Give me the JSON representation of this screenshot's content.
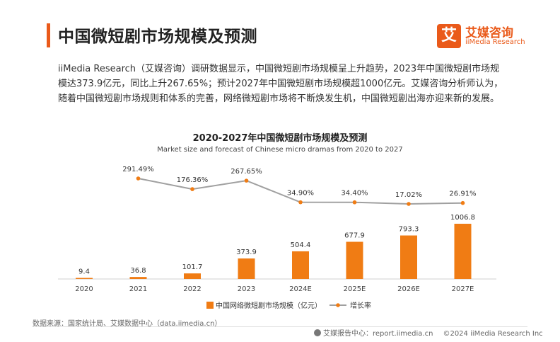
{
  "header": {
    "title": "中国微短剧市场规模及预测",
    "logo_mark": "艾",
    "logo_cn": "艾媒咨询",
    "logo_en": "iiMedia Research"
  },
  "paragraph": "iiMedia Research（艾媒咨询）调研数据显示，中国微短剧市场规模呈上升趋势，2023年中国微短剧市场规模达373.9亿元，同比上升267.65%；预计2027年中国微短剧市场规模超1000亿元。艾媒咨询分析师认为，随着中国微短剧市场规则和体系的完善，网络微短剧市场将不断焕发生机，中国微短剧出海亦迎来新的发展。",
  "chart_data": {
    "type": "bar",
    "title": "2020-2027年中国微短剧市场规模及预测",
    "subtitle": "Market size and forecast of Chinese micro dramas from 2020 to 2027",
    "categories": [
      "2020",
      "2021",
      "2022",
      "2023",
      "2024E",
      "2025E",
      "2026E",
      "2027E"
    ],
    "series": [
      {
        "name": "中国网络微短剧市场规模（亿元）",
        "type": "bar",
        "color": "#f07c14",
        "values": [
          9.4,
          36.8,
          101.7,
          373.9,
          504.4,
          677.9,
          793.3,
          1006.8
        ],
        "labels": [
          "9.4",
          "36.8",
          "101.7",
          "373.9",
          "504.4",
          "677.9",
          "793.3",
          "1006.8"
        ]
      },
      {
        "name": "增长率",
        "type": "line",
        "color": "#a0a0a0",
        "marker_color": "#f07c14",
        "values": [
          null,
          291.49,
          176.36,
          267.65,
          34.9,
          34.4,
          17.02,
          26.91
        ],
        "labels": [
          null,
          "291.49%",
          "176.36%",
          "267.65%",
          "34.90%",
          "34.40%",
          "17.02%",
          "26.91%"
        ]
      }
    ],
    "legend_position": "bottom",
    "grid": false
  },
  "source": "数据来源：国家统计局、艾媒数据中心（data.iimedia.cn）",
  "footer": {
    "report": "艾媒报告中心：report.iimedia.cn",
    "copyright": "©2024  iiMedia Research Inc"
  }
}
